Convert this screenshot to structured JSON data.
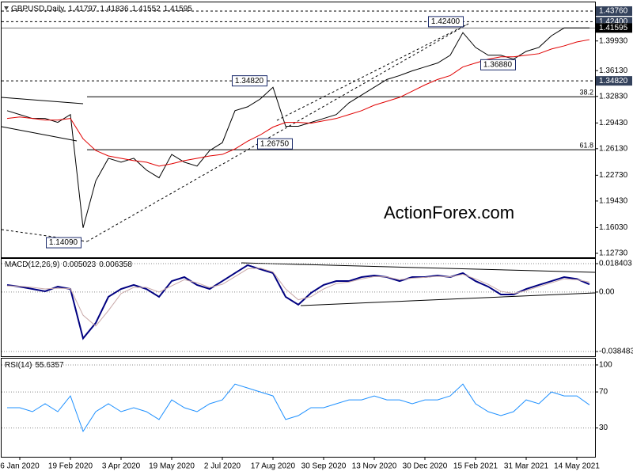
{
  "chart_data": [
    {
      "type": "line",
      "title": "GBPUSD,Daily",
      "ohlc": [
        1.41797,
        1.41836,
        1.41552,
        1.41595
      ],
      "series": [
        {
          "color": "#000000",
          "values": [
            1.31,
            1.305,
            1.3,
            1.3,
            1.295,
            1.305,
            1.16,
            1.22,
            1.249,
            1.244,
            1.249,
            1.234,
            1.224,
            1.254,
            1.244,
            1.239,
            1.259,
            1.269,
            1.31,
            1.315,
            1.325,
            1.34,
            1.29,
            1.29,
            1.295,
            1.3,
            1.305,
            1.32,
            1.33,
            1.34,
            1.35,
            1.355,
            1.361,
            1.366,
            1.371,
            1.381,
            1.41,
            1.391,
            1.381,
            1.381,
            1.376,
            1.386,
            1.391,
            1.406,
            1.416,
            1.416,
            1.416
          ]
        },
        {
          "color": "#e00000",
          "values": [
            1.3,
            1.302,
            1.3,
            1.298,
            1.298,
            1.3,
            1.274,
            1.259,
            1.252,
            1.249,
            1.246,
            1.244,
            1.239,
            1.242,
            1.246,
            1.249,
            1.252,
            1.254,
            1.261,
            1.271,
            1.279,
            1.289,
            1.295,
            1.295,
            1.294,
            1.297,
            1.3,
            1.305,
            1.31,
            1.317,
            1.322,
            1.327,
            1.335,
            1.343,
            1.35,
            1.355,
            1.366,
            1.371,
            1.376,
            1.379,
            1.379,
            1.381,
            1.383,
            1.389,
            1.393,
            1.398,
            1.401
          ]
        }
      ],
      "ylim": [
        1.1222,
        1.4467
      ],
      "yticks": [
        {
          "value": 1.4376,
          "label": "1.43760"
        },
        {
          "value": 1.3993,
          "label": "1.39930"
        },
        {
          "value": 1.3613,
          "label": "1.36130"
        },
        {
          "value": 1.3283,
          "label": "1.32830"
        },
        {
          "value": 1.2943,
          "label": "1.29430"
        },
        {
          "value": 1.2613,
          "label": "1.26130"
        },
        {
          "value": 1.2273,
          "label": "1.22730"
        },
        {
          "value": 1.1943,
          "label": "1.19430"
        },
        {
          "value": 1.1603,
          "label": "1.16030"
        },
        {
          "value": 1.1273,
          "label": "1.12730"
        }
      ],
      "levels": [
        {
          "value": 1.4376,
          "label": "1.43760"
        },
        {
          "value": 1.424,
          "label": "1.42400"
        },
        {
          "value": 1.3482,
          "label": "1.34820"
        }
      ],
      "fib": [
        {
          "level": 38.2,
          "price": 1.3278
        },
        {
          "level": 61.8,
          "price": 1.26
        }
      ],
      "annotations": [
        {
          "value": 1.424,
          "label": "1.42400"
        },
        {
          "value": 1.3482,
          "label": "1.34820"
        },
        {
          "value": 1.2675,
          "label": "1.26750"
        },
        {
          "value": 1.3688,
          "label": "1.36880"
        },
        {
          "value": 1.1409,
          "label": "1.14090"
        }
      ],
      "watermark": "ActionForex.com"
    },
    {
      "type": "line",
      "title": "MACD(12,26,9)",
      "readings": [
        0.005023,
        0.006358
      ],
      "series": [
        {
          "color": "#000080",
          "values": [
            0.0046,
            0.0035,
            0.002,
            0.0005,
            0.0035,
            0.002,
            -0.03,
            -0.02,
            -0.0031,
            0.002,
            0.0046,
            0.002,
            -0.0031,
            0.0071,
            0.0097,
            0.0046,
            0.002,
            0.0071,
            0.0123,
            0.0174,
            0.0148,
            0.0123,
            -0.0031,
            -0.0082,
            -0.0006,
            0.0046,
            0.0071,
            0.0071,
            0.0097,
            0.0107,
            0.0097,
            0.0071,
            0.0097,
            0.0097,
            0.0107,
            0.0097,
            0.0123,
            0.0071,
            0.0035,
            -0.0016,
            -0.0016,
            0.002,
            0.0046,
            0.0071,
            0.0097,
            0.0085,
            0.005
          ]
        },
        {
          "color": "#c8a8a8",
          "values": [
            0.004,
            0.0038,
            0.003,
            0.002,
            0.0025,
            0.0022,
            -0.015,
            -0.022,
            -0.012,
            -0.001,
            0.003,
            0.003,
            0.0,
            0.004,
            0.008,
            0.006,
            0.003,
            0.005,
            0.01,
            0.015,
            0.0155,
            0.013,
            0.002,
            -0.005,
            -0.003,
            0.002,
            0.0055,
            0.0065,
            0.0085,
            0.01,
            0.0098,
            0.008,
            0.009,
            0.0095,
            0.0102,
            0.0098,
            0.0115,
            0.0085,
            0.005,
            0.0005,
            -0.001,
            0.001,
            0.0035,
            0.006,
            0.0085,
            0.008,
            0.0064
          ]
        }
      ],
      "ylim": [
        -0.04156,
        0.02148
      ],
      "yticks": [
        0.018403,
        {
          "value": 0,
          "label": "0.00"
        },
        -0.038483
      ]
    },
    {
      "type": "line",
      "title": "RSI(14)",
      "readings": [
        55.6357
      ],
      "series": [
        {
          "color": "#1e90ff",
          "values": [
            52.5,
            52.5,
            48.1,
            56.9,
            48.1,
            65.6,
            26.2,
            48.1,
            56.9,
            48.1,
            52.5,
            48.1,
            39.4,
            61.2,
            52.5,
            48.1,
            56.9,
            61.2,
            78.7,
            74.4,
            70.0,
            65.6,
            39.4,
            43.7,
            52.5,
            52.5,
            56.9,
            61.2,
            61.2,
            65.6,
            61.2,
            61.2,
            56.9,
            61.2,
            61.2,
            65.6,
            78.7,
            56.9,
            48.1,
            43.7,
            48.1,
            61.2,
            56.9,
            70.0,
            65.6,
            65.6,
            55.6
          ]
        }
      ],
      "ylim": [
        -2,
        107
      ],
      "yticks": [
        100,
        70,
        30
      ],
      "categories": [
        null,
        "6 Jan 2020",
        null,
        null,
        null,
        "19 Feb 2020",
        null,
        null,
        null,
        "3 Apr 2020",
        null,
        null,
        null,
        "19 May 2020",
        null,
        null,
        null,
        "2 Jul 2020",
        null,
        null,
        null,
        "17 Aug 2020",
        null,
        null,
        null,
        "30 Sep 2020",
        null,
        null,
        null,
        "13 Nov 2020",
        null,
        null,
        null,
        "30 Dec 2020",
        null,
        null,
        null,
        "15 Feb 2021",
        null,
        null,
        null,
        "31 Mar 2021",
        null,
        null,
        null,
        "14 May 2021",
        null
      ]
    }
  ]
}
